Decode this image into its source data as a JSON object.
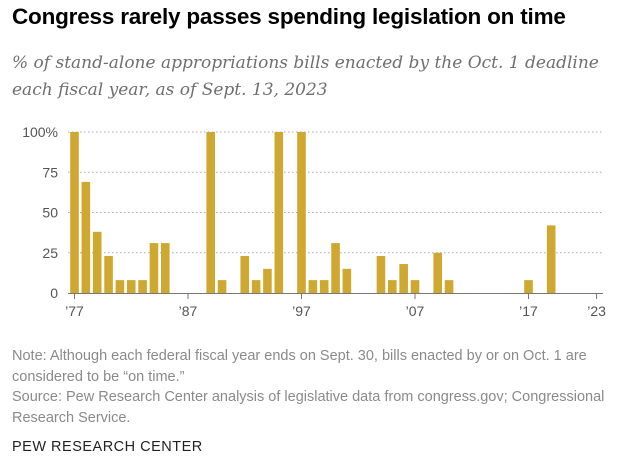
{
  "title": "Congress rarely passes spending legislation on time",
  "subtitle": "% of stand-alone appropriations bills enacted by the Oct. 1 deadline each fiscal year, as of Sept. 13, 2023",
  "note": {
    "note_text": "Note: Although each federal fiscal year ends on Sept. 30, bills enacted by or on Oct. 1 are considered to be “on time.”",
    "source_text": "Source: Pew Research Center analysis of legislative data from congress.gov; Congressional Research Service."
  },
  "brand": "PEW RESEARCH CENTER",
  "colors": {
    "bar": "#cfa832",
    "grid": "#aaaaaa",
    "axis": "#777777"
  },
  "chart_data": {
    "type": "bar",
    "title": "Congress rarely passes spending legislation on time",
    "xlabel": "",
    "ylabel": "",
    "ylim": [
      0,
      100
    ],
    "y_ticks": [
      0,
      25,
      50,
      75,
      100
    ],
    "y_tick_labels": [
      "0",
      "25",
      "50",
      "75",
      "100%"
    ],
    "x_range": [
      1977,
      2023
    ],
    "x_ticks": [
      1977,
      1987,
      1997,
      2007,
      2017,
      2023
    ],
    "x_tick_labels": [
      "’77",
      "’87",
      "’97",
      "’07",
      "’17",
      "’23"
    ],
    "grid": true,
    "x": [
      1977,
      1978,
      1979,
      1980,
      1981,
      1982,
      1983,
      1984,
      1985,
      1986,
      1987,
      1988,
      1989,
      1990,
      1991,
      1992,
      1993,
      1994,
      1995,
      1996,
      1997,
      1998,
      1999,
      2000,
      2001,
      2002,
      2003,
      2004,
      2005,
      2006,
      2007,
      2008,
      2009,
      2010,
      2011,
      2012,
      2013,
      2014,
      2015,
      2016,
      2017,
      2018,
      2019,
      2020,
      2021,
      2022,
      2023
    ],
    "values": [
      100,
      69,
      38,
      23,
      8,
      8,
      8,
      31,
      31,
      0,
      0,
      0,
      100,
      8,
      0,
      23,
      8,
      15,
      100,
      0,
      100,
      8,
      8,
      31,
      15,
      0,
      0,
      23,
      8,
      18,
      8,
      0,
      25,
      8,
      0,
      0,
      0,
      0,
      0,
      0,
      8,
      0,
      42,
      0,
      0,
      0,
      0
    ]
  }
}
